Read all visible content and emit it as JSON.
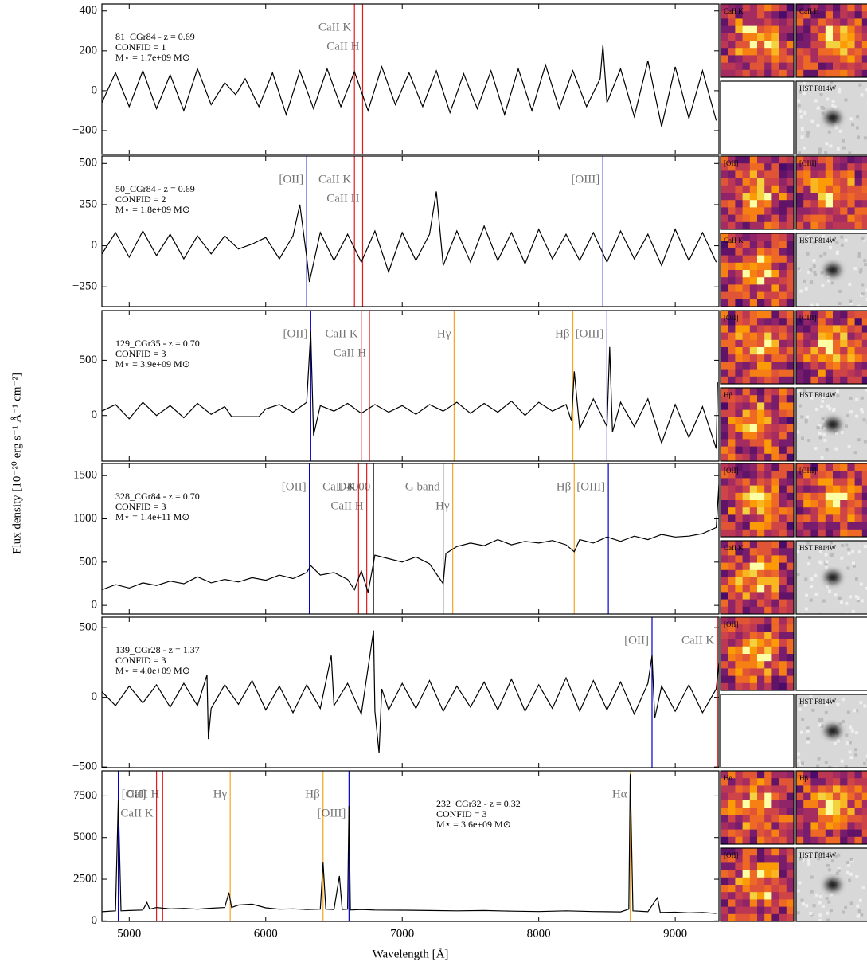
{
  "ylabel": "Flux density [10⁻²⁰ erg s⁻¹ Å⁻¹ cm⁻²]",
  "chart_data": [
    {
      "type": "line",
      "xlim": [
        4800,
        9320
      ],
      "ylim": [
        -320,
        435
      ],
      "yticks": [
        {
          "value": -200,
          "label": "−200"
        },
        0,
        200,
        400
      ],
      "annotation": [
        "81_CGr84 - z = 0.69",
        "CONFID = 1",
        "M⋆ = 1.7e+09 M⊙"
      ],
      "annotation_corner": "upper left",
      "color": "#000000",
      "x": [
        4800,
        4900,
        5000,
        5100,
        5200,
        5300,
        5400,
        5500,
        5600,
        5700,
        5780,
        5850,
        5950,
        6050,
        6150,
        6250,
        6350,
        6450,
        6550,
        6650,
        6750,
        6850,
        6950,
        7050,
        7150,
        7250,
        7350,
        7450,
        7550,
        7650,
        7750,
        7850,
        7950,
        8050,
        8150,
        8250,
        8350,
        8450,
        8470,
        8500,
        8600,
        8700,
        8800,
        8900,
        9000,
        9100,
        9200,
        9300
      ],
      "values": [
        -60,
        90,
        -80,
        100,
        -90,
        80,
        -100,
        110,
        -70,
        40,
        -20,
        60,
        -80,
        90,
        -120,
        100,
        -90,
        110,
        -80,
        95,
        -100,
        120,
        -70,
        90,
        -80,
        100,
        -110,
        85,
        -90,
        100,
        -120,
        110,
        -100,
        130,
        -90,
        100,
        -80,
        60,
        230,
        -60,
        110,
        -130,
        150,
        -180,
        120,
        -140,
        100,
        -150
      ],
      "lines": [
        {
          "label": "CaII K",
          "x": 6650,
          "color": "#e41a1c"
        },
        {
          "label": "CaII H",
          "x": 6710,
          "color": "#e41a1c"
        }
      ],
      "thumbnails": [
        {
          "label": "CaII K",
          "style": "inferno"
        },
        {
          "label": "CaII H",
          "style": "inferno"
        },
        {
          "label": null,
          "style": "blank"
        },
        {
          "label": "HST F814W",
          "style": "gray"
        }
      ]
    },
    {
      "type": "line",
      "xlim": [
        4800,
        9320
      ],
      "ylim": [
        -370,
        545
      ],
      "yticks": [
        {
          "value": -250,
          "label": "−250"
        },
        0,
        250,
        500
      ],
      "annotation": [
        "50_CGr84 - z = 0.69",
        "CONFID = 2",
        "M⋆ = 1.8e+09 M⊙"
      ],
      "annotation_corner": "upper left",
      "color": "#000000",
      "x": [
        4800,
        4900,
        5000,
        5100,
        5200,
        5300,
        5400,
        5500,
        5600,
        5700,
        5800,
        5900,
        6000,
        6100,
        6200,
        6250,
        6300,
        6320,
        6400,
        6500,
        6600,
        6700,
        6800,
        6900,
        7000,
        7100,
        7200,
        7250,
        7300,
        7400,
        7500,
        7600,
        7700,
        7800,
        7900,
        8000,
        8100,
        8200,
        8300,
        8400,
        8500,
        8600,
        8700,
        8800,
        8900,
        9000,
        9100,
        9200,
        9300
      ],
      "values": [
        -50,
        80,
        -70,
        90,
        -60,
        70,
        -80,
        60,
        -50,
        60,
        -20,
        10,
        50,
        -80,
        60,
        250,
        -70,
        -220,
        80,
        -90,
        70,
        -100,
        90,
        -160,
        80,
        -90,
        70,
        330,
        -120,
        90,
        -100,
        120,
        -90,
        80,
        -110,
        100,
        -80,
        70,
        -90,
        80,
        -100,
        90,
        -80,
        70,
        -120,
        100,
        -90,
        80,
        -100
      ],
      "lines": [
        {
          "label": "[OII]",
          "x": 6300,
          "color": "#0000cc"
        },
        {
          "label": "CaII K",
          "x": 6650,
          "color": "#e41a1c"
        },
        {
          "label": "CaII H",
          "x": 6710,
          "color": "#e41a1c"
        },
        {
          "label": "[OIII]",
          "x": 8470,
          "color": "#0000cc"
        }
      ],
      "thumbnails": [
        {
          "label": "[OII]",
          "style": "inferno"
        },
        {
          "label": "[OIII]",
          "style": "inferno"
        },
        {
          "label": "CaII K",
          "style": "inferno"
        },
        {
          "label": "HST F814W",
          "style": "gray"
        }
      ]
    },
    {
      "type": "line",
      "xlim": [
        4800,
        9320
      ],
      "ylim": [
        -413,
        950
      ],
      "yticks": [
        0,
        500
      ],
      "annotation": [
        "129_CGr35 - z = 0.70",
        "CONFID = 3",
        "M⋆ = 3.9e+09 M⊙"
      ],
      "annotation_corner": "upper left",
      "color": "#000000",
      "x": [
        4800,
        4900,
        5000,
        5100,
        5200,
        5300,
        5400,
        5500,
        5600,
        5700,
        5750,
        5800,
        5950,
        6000,
        6100,
        6200,
        6300,
        6330,
        6350,
        6400,
        6500,
        6600,
        6700,
        6800,
        6900,
        7000,
        7100,
        7200,
        7300,
        7400,
        7500,
        7600,
        7700,
        7800,
        7900,
        8000,
        8100,
        8200,
        8240,
        8260,
        8300,
        8400,
        8500,
        8520,
        8540,
        8600,
        8700,
        8800,
        8900,
        9000,
        9100,
        9200,
        9300,
        9310
      ],
      "values": [
        40,
        100,
        -30,
        120,
        0,
        90,
        -20,
        110,
        10,
        80,
        -10,
        -10,
        -10,
        60,
        100,
        30,
        120,
        760,
        -180,
        90,
        40,
        110,
        20,
        100,
        30,
        90,
        10,
        100,
        40,
        120,
        20,
        110,
        30,
        130,
        0,
        120,
        40,
        100,
        -50,
        400,
        -120,
        150,
        -100,
        620,
        -150,
        120,
        -100,
        150,
        -250,
        100,
        -200,
        80,
        -300,
        300
      ],
      "lines": [
        {
          "label": "[OII]",
          "x": 6330,
          "color": "#0000cc"
        },
        {
          "label": "CaII K",
          "x": 6700,
          "color": "#e41a1c"
        },
        {
          "label": "CaII H",
          "x": 6760,
          "color": "#e41a1c"
        },
        {
          "label": "Hγ",
          "x": 7380,
          "color": "#f5a623"
        },
        {
          "label": "Hβ",
          "x": 8250,
          "color": "#f5a623"
        },
        {
          "label": "[OIII]",
          "x": 8500,
          "color": "#0000cc"
        }
      ],
      "thumbnails": [
        {
          "label": "[OII]",
          "style": "inferno"
        },
        {
          "label": "[OIII]",
          "style": "inferno"
        },
        {
          "label": "Hβ",
          "style": "inferno"
        },
        {
          "label": "HST F814W",
          "style": "gray"
        }
      ]
    },
    {
      "type": "line",
      "xlim": [
        4800,
        9320
      ],
      "ylim": [
        -100,
        1640
      ],
      "yticks": [
        0,
        500,
        1000,
        1500
      ],
      "annotation": [
        "328_CGr84 - z = 0.70",
        "CONFID = 3",
        "M⋆ = 1.4e+11 M⊙"
      ],
      "annotation_corner": "upper left",
      "color": "#000000",
      "x": [
        4800,
        4900,
        5000,
        5100,
        5200,
        5300,
        5400,
        5500,
        5600,
        5700,
        5800,
        5900,
        6000,
        6100,
        6200,
        6300,
        6330,
        6400,
        6500,
        6600,
        6650,
        6700,
        6750,
        6800,
        6900,
        7000,
        7100,
        7200,
        7300,
        7320,
        7400,
        7500,
        7600,
        7700,
        7800,
        7900,
        8000,
        8100,
        8200,
        8260,
        8300,
        8400,
        8500,
        8600,
        8700,
        8800,
        8900,
        9000,
        9100,
        9200,
        9300,
        9320
      ],
      "values": [
        180,
        240,
        200,
        260,
        230,
        280,
        250,
        330,
        260,
        300,
        270,
        320,
        290,
        350,
        310,
        380,
        460,
        350,
        380,
        300,
        180,
        400,
        150,
        580,
        540,
        500,
        560,
        480,
        250,
        600,
        680,
        720,
        690,
        760,
        700,
        740,
        720,
        750,
        700,
        620,
        760,
        720,
        790,
        740,
        800,
        760,
        820,
        790,
        800,
        830,
        900,
        1400
      ],
      "lines": [
        {
          "label": "[OII]",
          "x": 6320,
          "color": "#0000cc"
        },
        {
          "label": "CaII K",
          "x": 6680,
          "color": "#e41a1c"
        },
        {
          "label": "CaII H",
          "x": 6740,
          "color": "#e41a1c"
        },
        {
          "label": "D4000",
          "x": 6790,
          "color": "#222222"
        },
        {
          "label": "G band",
          "x": 7300,
          "color": "#222222"
        },
        {
          "label": "Hγ",
          "x": 7370,
          "color": "#f5a623"
        },
        {
          "label": "Hβ",
          "x": 8260,
          "color": "#f5a623"
        },
        {
          "label": "[OIII]",
          "x": 8510,
          "color": "#0000cc"
        }
      ],
      "thumbnails": [
        {
          "label": "[OII]",
          "style": "inferno"
        },
        {
          "label": "[OIII]",
          "style": "inferno"
        },
        {
          "label": "CaII K",
          "style": "inferno"
        },
        {
          "label": "HST F814W",
          "style": "gray"
        }
      ]
    },
    {
      "type": "line",
      "xlim": [
        4800,
        9320
      ],
      "ylim": [
        -505,
        575
      ],
      "yticks": [
        {
          "value": -500,
          "label": "−500"
        },
        0,
        500
      ],
      "annotation": [
        "139_CGr28 - z = 1.37",
        "CONFID = 3",
        "M⋆ = 4.0e+09 M⊙"
      ],
      "annotation_corner": "upper left",
      "color": "#000000",
      "x": [
        4800,
        4900,
        5000,
        5100,
        5200,
        5300,
        5400,
        5500,
        5570,
        5580,
        5600,
        5700,
        5800,
        5900,
        6000,
        6100,
        6200,
        6300,
        6400,
        6480,
        6500,
        6600,
        6700,
        6790,
        6800,
        6830,
        6850,
        6900,
        7000,
        7100,
        7200,
        7300,
        7400,
        7500,
        7600,
        7700,
        7800,
        7900,
        8000,
        8100,
        8200,
        8300,
        8400,
        8500,
        8600,
        8700,
        8800,
        8830,
        8850,
        8900,
        9000,
        9100,
        9200,
        9300,
        9320
      ],
      "values": [
        40,
        -60,
        80,
        -40,
        90,
        -70,
        100,
        -60,
        160,
        -300,
        -80,
        90,
        -50,
        120,
        -90,
        80,
        -110,
        90,
        -80,
        300,
        -60,
        100,
        -120,
        480,
        -100,
        -400,
        60,
        -90,
        100,
        -80,
        120,
        -100,
        80,
        -70,
        110,
        -90,
        130,
        -100,
        90,
        -80,
        140,
        -100,
        120,
        -90,
        110,
        -120,
        100,
        300,
        -150,
        80,
        -100,
        90,
        -110,
        60,
        250
      ],
      "lines": [
        {
          "label": "[OII]",
          "x": 8830,
          "color": "#0000cc"
        },
        {
          "label": "CaII K",
          "x": 9310,
          "color": "#e41a1c"
        }
      ],
      "thumbnails": [
        {
          "label": "[OII]",
          "style": "inferno"
        },
        {
          "label": null,
          "style": "blank"
        },
        {
          "label": null,
          "style": "blank"
        },
        {
          "label": "HST F814W",
          "style": "gray"
        }
      ]
    },
    {
      "type": "line",
      "xlim": [
        4800,
        9320
      ],
      "ylim": [
        -30,
        9000
      ],
      "yticks": [
        0,
        2500,
        5000,
        7500
      ],
      "xticks": [
        5000,
        6000,
        7000,
        8000,
        9000
      ],
      "xlabel": "Wavelength [Å]",
      "annotation": [
        "232_CGr32 - z = 0.32",
        "CONFID = 3",
        "M⋆ = 3.6e+09 M⊙"
      ],
      "annotation_corner": "upper center",
      "color": "#000000",
      "x": [
        4800,
        4900,
        4920,
        4940,
        5000,
        5100,
        5130,
        5150,
        5200,
        5300,
        5400,
        5500,
        5600,
        5700,
        5730,
        5750,
        5800,
        5900,
        6000,
        6100,
        6200,
        6300,
        6400,
        6420,
        6440,
        6500,
        6540,
        6560,
        6600,
        6610,
        6620,
        6700,
        6800,
        7000,
        7200,
        7400,
        7600,
        7800,
        8000,
        8200,
        8400,
        8600,
        8660,
        8670,
        8690,
        8800,
        8870,
        8890,
        9000,
        9100,
        9200,
        9300
      ],
      "values": [
        550,
        600,
        7300,
        600,
        620,
        650,
        1100,
        700,
        800,
        720,
        750,
        700,
        760,
        800,
        1700,
        800,
        950,
        1000,
        780,
        700,
        720,
        680,
        700,
        3500,
        700,
        680,
        2700,
        680,
        700,
        6900,
        650,
        680,
        650,
        640,
        620,
        600,
        620,
        580,
        560,
        600,
        560,
        540,
        700,
        8800,
        600,
        550,
        1400,
        500,
        520,
        480,
        500,
        450
      ],
      "lines": [
        {
          "label": "[OII]",
          "x": 4920,
          "color": "#0000cc"
        },
        {
          "label": "CaII K",
          "x": 5200,
          "color": "#e41a1c"
        },
        {
          "label": "CaII H",
          "x": 5245,
          "color": "#e41a1c"
        },
        {
          "label": "Hγ",
          "x": 5740,
          "color": "#f5a623"
        },
        {
          "label": "Hβ",
          "x": 6420,
          "color": "#f5a623"
        },
        {
          "label": "[OIII]",
          "x": 6610,
          "color": "#0000cc"
        },
        {
          "label": "Hα",
          "x": 8670,
          "color": "#f5a623"
        }
      ],
      "thumbnails": [
        {
          "label": "Hα",
          "style": "inferno"
        },
        {
          "label": "Hβ",
          "style": "inferno"
        },
        {
          "label": "[OII]",
          "style": "inferno"
        },
        {
          "label": "HST F814W",
          "style": "gray"
        }
      ]
    }
  ]
}
